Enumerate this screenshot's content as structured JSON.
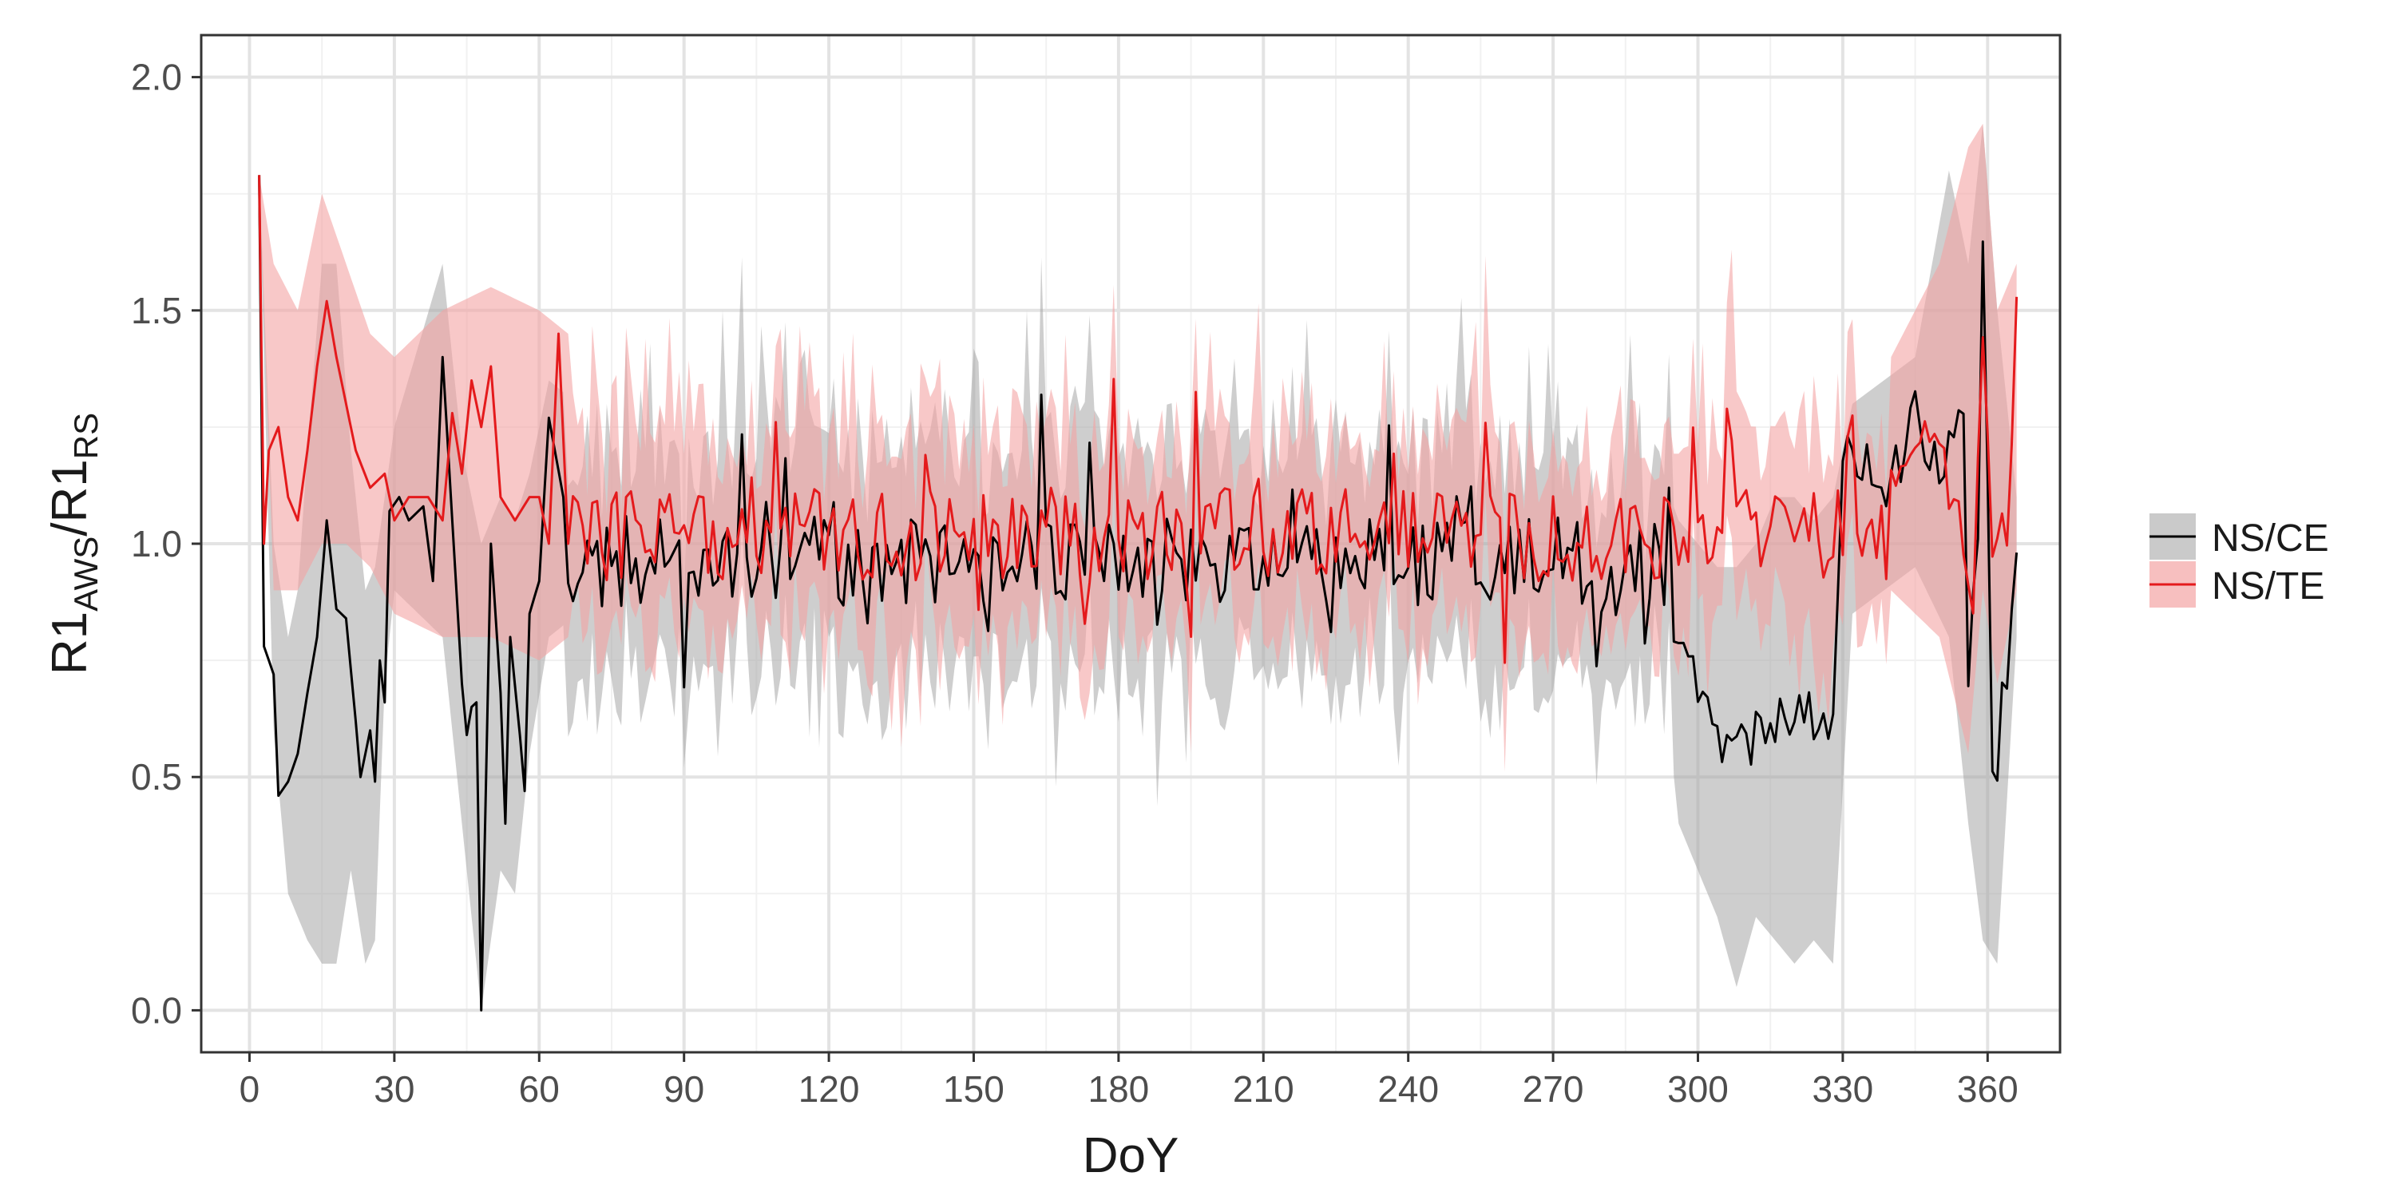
{
  "chart_data": {
    "type": "line",
    "xlabel": "DoY",
    "ylabel": {
      "main": "R1",
      "sub_num": "AWS",
      "slash": "/",
      "main2": "R1",
      "sub_den": "RS"
    },
    "xlim": [
      -10,
      375
    ],
    "ylim": [
      -0.09,
      2.09
    ],
    "x_ticks": [
      0,
      30,
      60,
      90,
      120,
      150,
      180,
      210,
      240,
      270,
      300,
      330,
      360
    ],
    "x_tick_labels": [
      "0",
      "30",
      "60",
      "90",
      "120",
      "150",
      "180",
      "210",
      "240",
      "270",
      "300",
      "330",
      "360"
    ],
    "y_ticks": [
      0.0,
      0.5,
      1.0,
      1.5,
      2.0
    ],
    "y_tick_labels": [
      "0.0",
      "0.5",
      "1.0",
      "1.5",
      "2.0"
    ],
    "grid": true,
    "legend_position": "right",
    "colors": {
      "ns_ce_line": "#000000",
      "ns_ce_band": "#a6a6a6",
      "ns_te_line": "#e41a1c",
      "ns_te_band": "#f4a4a4",
      "panel_border": "#333333",
      "grid_major": "#e3e3e3",
      "grid_minor": "#f1f1f1"
    },
    "series": [
      {
        "name": "NS/CE",
        "key_points": [
          [
            2,
            1.79
          ],
          [
            3,
            0.78
          ],
          [
            5,
            0.72
          ],
          [
            6,
            0.46
          ],
          [
            8,
            0.49
          ],
          [
            10,
            0.55
          ],
          [
            12,
            0.68
          ],
          [
            14,
            0.8
          ],
          [
            16,
            1.05
          ],
          [
            18,
            0.86
          ],
          [
            20,
            0.84
          ],
          [
            22,
            0.62
          ],
          [
            23,
            0.5
          ],
          [
            25,
            0.6
          ],
          [
            26,
            0.49
          ],
          [
            27,
            0.75
          ],
          [
            28,
            0.66
          ],
          [
            29,
            1.07
          ],
          [
            31,
            1.1
          ],
          [
            33,
            1.05
          ],
          [
            36,
            1.08
          ],
          [
            38,
            0.92
          ],
          [
            40,
            1.4
          ],
          [
            42,
            1.05
          ],
          [
            44,
            0.7
          ],
          [
            45,
            0.59
          ],
          [
            46,
            0.65
          ],
          [
            47,
            0.66
          ],
          [
            48,
            0.0
          ],
          [
            50,
            1.0
          ],
          [
            52,
            0.68
          ],
          [
            53,
            0.4
          ],
          [
            54,
            0.8
          ],
          [
            56,
            0.59
          ],
          [
            57,
            0.47
          ],
          [
            58,
            0.85
          ],
          [
            60,
            0.92
          ],
          [
            62,
            1.27
          ],
          [
            65,
            1.1
          ]
        ],
        "band_key_points": [
          [
            2,
            1.79,
            1.79
          ],
          [
            5,
            0.6,
            1.0
          ],
          [
            8,
            0.25,
            0.8
          ],
          [
            10,
            0.2,
            0.9
          ],
          [
            12,
            0.15,
            1.2
          ],
          [
            15,
            0.1,
            1.6
          ],
          [
            18,
            0.1,
            1.6
          ],
          [
            21,
            0.3,
            1.2
          ],
          [
            24,
            0.1,
            0.9
          ],
          [
            26,
            0.15,
            0.95
          ],
          [
            28,
            0.7,
            1.1
          ],
          [
            30,
            0.9,
            1.25
          ],
          [
            40,
            0.8,
            1.6
          ],
          [
            44,
            0.4,
            1.2
          ],
          [
            48,
            0.0,
            1.0
          ],
          [
            52,
            0.3,
            1.1
          ],
          [
            55,
            0.25,
            1.05
          ],
          [
            58,
            0.55,
            1.15
          ],
          [
            62,
            0.8,
            1.35
          ],
          [
            68,
            0.85,
            1.3
          ]
        ],
        "segments": [
          {
            "x_from": 60,
            "x_to": 295,
            "mean": 0.96,
            "dip_at": 262,
            "dip_to": 0.85
          },
          {
            "x_from": 295,
            "x_to": 332,
            "mean": 0.78
          },
          {
            "x_from": 332,
            "x_to": 366,
            "mean": 1.05
          }
        ],
        "tail_points": [
          [
            296,
            0.8
          ],
          [
            300,
            0.72
          ],
          [
            304,
            0.58
          ],
          [
            308,
            0.6
          ],
          [
            312,
            0.58
          ],
          [
            316,
            0.62
          ],
          [
            320,
            0.63
          ],
          [
            324,
            0.62
          ],
          [
            328,
            0.62
          ],
          [
            330,
            1.2
          ],
          [
            340,
            1.12
          ],
          [
            345,
            1.28
          ],
          [
            350,
            1.17
          ],
          [
            355,
            1.27
          ],
          [
            356,
            0.75
          ],
          [
            358,
            1.0
          ],
          [
            359,
            1.63
          ],
          [
            361,
            0.57
          ],
          [
            362,
            0.55
          ],
          [
            366,
            0.93
          ]
        ],
        "tail_band": [
          [
            296,
            0.4,
            1.05
          ],
          [
            300,
            0.3,
            1.0
          ],
          [
            304,
            0.2,
            0.95
          ],
          [
            308,
            0.05,
            0.95
          ],
          [
            312,
            0.2,
            1.0
          ],
          [
            316,
            0.15,
            1.1
          ],
          [
            320,
            0.1,
            1.1
          ],
          [
            324,
            0.15,
            1.05
          ],
          [
            328,
            0.1,
            1.1
          ],
          [
            332,
            0.85,
            1.3
          ],
          [
            345,
            0.95,
            1.4
          ],
          [
            352,
            0.8,
            1.8
          ],
          [
            356,
            0.4,
            1.6
          ],
          [
            359,
            0.15,
            1.9
          ],
          [
            362,
            0.1,
            1.5
          ],
          [
            366,
            0.8,
            1.1
          ]
        ]
      },
      {
        "name": "NS/TE",
        "key_points": [
          [
            2,
            1.79
          ],
          [
            3,
            1.0
          ],
          [
            4,
            1.2
          ],
          [
            6,
            1.25
          ],
          [
            8,
            1.1
          ],
          [
            10,
            1.05
          ],
          [
            12,
            1.2
          ],
          [
            14,
            1.38
          ],
          [
            16,
            1.52
          ],
          [
            18,
            1.4
          ],
          [
            20,
            1.3
          ],
          [
            22,
            1.2
          ],
          [
            25,
            1.12
          ],
          [
            28,
            1.15
          ],
          [
            30,
            1.05
          ],
          [
            33,
            1.1
          ],
          [
            37,
            1.1
          ],
          [
            40,
            1.05
          ],
          [
            42,
            1.28
          ],
          [
            44,
            1.15
          ],
          [
            46,
            1.35
          ],
          [
            48,
            1.25
          ],
          [
            50,
            1.38
          ],
          [
            52,
            1.1
          ],
          [
            55,
            1.05
          ],
          [
            58,
            1.1
          ],
          [
            60,
            1.1
          ],
          [
            62,
            1.0
          ],
          [
            64,
            1.45
          ],
          [
            66,
            1.0
          ]
        ],
        "band_key_points": [
          [
            2,
            1.79,
            1.79
          ],
          [
            5,
            0.9,
            1.6
          ],
          [
            10,
            0.9,
            1.5
          ],
          [
            15,
            1.0,
            1.75
          ],
          [
            20,
            1.0,
            1.6
          ],
          [
            25,
            0.95,
            1.45
          ],
          [
            30,
            0.85,
            1.4
          ],
          [
            40,
            0.8,
            1.5
          ],
          [
            50,
            0.8,
            1.55
          ],
          [
            60,
            0.75,
            1.5
          ],
          [
            66,
            0.8,
            1.45
          ]
        ],
        "segments": [
          {
            "x_from": 66,
            "x_to": 362,
            "mean": 1.02
          },
          {
            "x_from": 355,
            "x_to": 366,
            "mean": 1.05
          }
        ],
        "tail_points": [
          [
            340,
            1.15
          ],
          [
            345,
            1.25
          ],
          [
            350,
            1.2
          ],
          [
            355,
            1.0
          ],
          [
            357,
            0.85
          ],
          [
            359,
            1.47
          ],
          [
            361,
            1.0
          ],
          [
            363,
            1.05
          ],
          [
            364,
            1.0
          ],
          [
            366,
            1.48
          ]
        ],
        "tail_band": [
          [
            340,
            0.9,
            1.4
          ],
          [
            350,
            0.8,
            1.6
          ],
          [
            356,
            0.55,
            1.85
          ],
          [
            359,
            0.9,
            1.9
          ],
          [
            362,
            0.7,
            1.5
          ],
          [
            366,
            0.9,
            1.6
          ]
        ]
      }
    ]
  },
  "legend": {
    "items": [
      {
        "label": "NS/CE"
      },
      {
        "label": "NS/TE"
      }
    ]
  }
}
